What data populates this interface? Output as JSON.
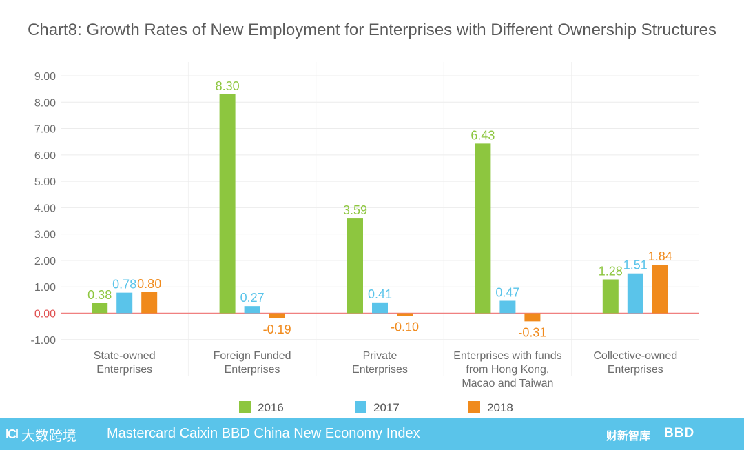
{
  "chart_data": {
    "type": "bar",
    "title": "Chart8: Growth Rates of New Employment for Enterprises with Different Ownership Structures",
    "categories": [
      [
        "State-owned",
        "Enterprises"
      ],
      [
        "Foreign Funded",
        "Enterprises"
      ],
      [
        "Private",
        "Enterprises"
      ],
      [
        "Enterprises with funds",
        "from Hong Kong,",
        "Macao and Taiwan"
      ],
      [
        "Collective-owned",
        "Enterprises"
      ]
    ],
    "series": [
      {
        "name": "2016",
        "color": "#8dc63f",
        "values": [
          0.38,
          8.3,
          3.59,
          6.43,
          1.28
        ]
      },
      {
        "name": "2017",
        "color": "#5ac4ea",
        "values": [
          0.78,
          0.27,
          0.41,
          0.47,
          1.51
        ]
      },
      {
        "name": "2018",
        "color": "#f08a1c",
        "values": [
          0.8,
          -0.19,
          -0.1,
          -0.31,
          1.84
        ]
      }
    ],
    "yticks": [
      "9.00",
      "8.00",
      "7.00",
      "6.00",
      "5.00",
      "4.00",
      "3.00",
      "2.00",
      "1.00",
      "0.00",
      "-1.00"
    ],
    "ylim": [
      -1,
      9
    ],
    "zero_line_color": "#f08080",
    "tick_color_zero": "#e05050",
    "legend_position": "bottom-center"
  },
  "footer": {
    "brand_mark": "ICI",
    "brand_cn": "大数跨境",
    "title": "Mastercard Caixin BBD China New Economy Index",
    "logo_cn": "财新智库",
    "logo_bbd": "BBD"
  }
}
